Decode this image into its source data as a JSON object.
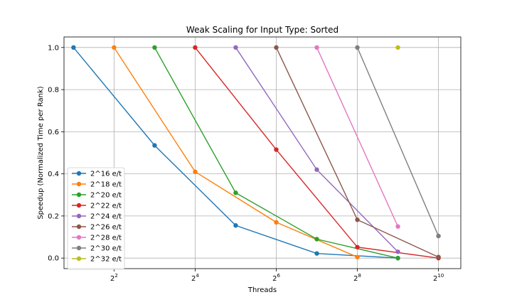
{
  "chart_data": {
    "type": "line",
    "title": "Weak Scaling for Input Type: Sorted",
    "xlabel": "Threads",
    "ylabel": "Speedup (Normalized Time per Rank)",
    "x_scale": "log2",
    "xlim": [
      1.7,
      1500
    ],
    "ylim": [
      -0.05,
      1.05
    ],
    "x_ticks": [
      {
        "value": 4,
        "base": "2",
        "exp": "2"
      },
      {
        "value": 16,
        "base": "2",
        "exp": "4"
      },
      {
        "value": 64,
        "base": "2",
        "exp": "6"
      },
      {
        "value": 256,
        "base": "2",
        "exp": "8"
      },
      {
        "value": 1024,
        "base": "2",
        "exp": "10"
      }
    ],
    "y_ticks": [
      "0.0",
      "0.2",
      "0.4",
      "0.6",
      "0.8",
      "1.0"
    ],
    "grid": true,
    "legend_position": "lower-left",
    "series": [
      {
        "name": "2^16 e/t",
        "color": "#1f77b4",
        "x": [
          2,
          8,
          32,
          128,
          512
        ],
        "y": [
          1.0,
          0.535,
          0.155,
          0.022,
          0.0
        ]
      },
      {
        "name": "2^18 e/t",
        "color": "#ff7f0e",
        "x": [
          4,
          16,
          64,
          256
        ],
        "y": [
          1.0,
          0.41,
          0.17,
          0.005
        ]
      },
      {
        "name": "2^20 e/t",
        "color": "#2ca02c",
        "x": [
          8,
          32,
          128,
          512
        ],
        "y": [
          1.0,
          0.31,
          0.09,
          0.0
        ]
      },
      {
        "name": "2^22 e/t",
        "color": "#d62728",
        "x": [
          16,
          64,
          256,
          1024
        ],
        "y": [
          1.0,
          0.515,
          0.052,
          0.0
        ]
      },
      {
        "name": "2^24 e/t",
        "color": "#9467bd",
        "x": [
          32,
          128,
          512
        ],
        "y": [
          1.0,
          0.42,
          0.03
        ]
      },
      {
        "name": "2^26 e/t",
        "color": "#8c564b",
        "x": [
          64,
          256,
          1024
        ],
        "y": [
          1.0,
          0.182,
          0.005
        ]
      },
      {
        "name": "2^28 e/t",
        "color": "#e377c2",
        "x": [
          128,
          512
        ],
        "y": [
          1.0,
          0.15
        ]
      },
      {
        "name": "2^30 e/t",
        "color": "#7f7f7f",
        "x": [
          256,
          1024
        ],
        "y": [
          1.0,
          0.105
        ]
      },
      {
        "name": "2^32 e/t",
        "color": "#bcbd22",
        "x": [
          512
        ],
        "y": [
          1.0
        ]
      }
    ]
  }
}
